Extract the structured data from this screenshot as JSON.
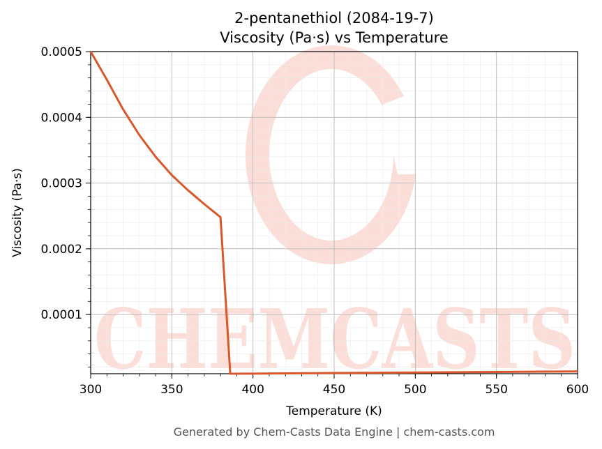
{
  "chart_data": {
    "type": "line",
    "title": "2-pentanethiol (2084-19-7)",
    "subtitle": "Viscosity (Pa·s) vs Temperature",
    "xlabel": "Temperature (K)",
    "ylabel": "Viscosity (Pa·s)",
    "xlim": [
      300,
      600
    ],
    "ylim": [
      1e-05,
      0.0005
    ],
    "x_ticks": [
      300,
      350,
      400,
      450,
      500,
      550,
      600
    ],
    "x_tick_labels": [
      "300",
      "350",
      "400",
      "450",
      "500",
      "550",
      "600"
    ],
    "y_ticks": [
      0.0001,
      0.0002,
      0.0003,
      0.0004,
      0.0005
    ],
    "y_tick_labels": [
      "0.0001",
      "0.0002",
      "0.0003",
      "0.0004",
      "0.0005"
    ],
    "grid": true,
    "minor_grid": true,
    "line_color": "#d9572b",
    "series": [
      {
        "x": [
          300,
          310,
          320,
          330,
          340,
          350,
          360,
          370,
          380,
          386,
          400,
          450,
          500,
          550,
          600
        ],
        "y": [
          0.000508,
          0.000457,
          0.000412,
          0.000373,
          0.00034,
          0.000312,
          0.000289,
          0.000268,
          0.000248,
          9.8e-06,
          1.01e-05,
          1.1e-05,
          1.18e-05,
          1.26e-05,
          1.35e-05
        ]
      }
    ]
  },
  "watermark": {
    "text": "CHEMCASTS",
    "color": "#fcded9"
  },
  "footer": "Generated by Chem-Casts Data Engine | chem-casts.com"
}
